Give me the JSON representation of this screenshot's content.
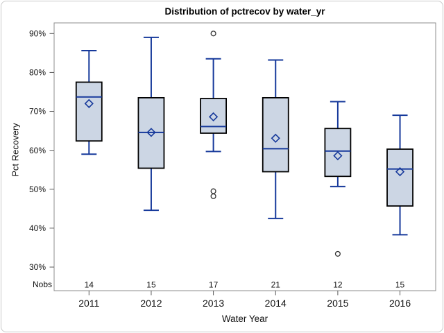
{
  "chart_data": {
    "type": "box",
    "title": "Distribution of pctrecov by water_yr",
    "xlabel": "Water Year",
    "ylabel": "Pct Recovery",
    "nobs_row_label": "Nobs",
    "y_axis": {
      "min": 30,
      "max": 90,
      "tick_step": 10,
      "tick_labels": [
        "30%",
        "40%",
        "50%",
        "60%",
        "70%",
        "80%",
        "90%"
      ],
      "grid": false
    },
    "categories": [
      "2011",
      "2012",
      "2013",
      "2014",
      "2015",
      "2016"
    ],
    "nobs": [
      14,
      15,
      17,
      21,
      12,
      15
    ],
    "legend": "none",
    "series": [
      {
        "category": "2011",
        "n": 14,
        "whisker_low": 59.0,
        "q1": 62.4,
        "median": 73.7,
        "q3": 77.5,
        "whisker_high": 85.6,
        "mean": 72.0,
        "outliers": []
      },
      {
        "category": "2012",
        "n": 15,
        "whisker_low": 44.6,
        "q1": 55.4,
        "median": 64.6,
        "q3": 73.5,
        "whisker_high": 89.0,
        "mean": 64.6,
        "outliers": []
      },
      {
        "category": "2013",
        "n": 17,
        "whisker_low": 59.7,
        "q1": 64.4,
        "median": 66.1,
        "q3": 73.3,
        "whisker_high": 83.5,
        "mean": 68.6,
        "outliers": [
          90.0,
          49.5,
          48.2
        ]
      },
      {
        "category": "2014",
        "n": 21,
        "whisker_low": 42.5,
        "q1": 54.5,
        "median": 60.4,
        "q3": 73.5,
        "whisker_high": 83.2,
        "mean": 63.1,
        "outliers": []
      },
      {
        "category": "2015",
        "n": 12,
        "whisker_low": 50.7,
        "q1": 53.3,
        "median": 59.8,
        "q3": 65.6,
        "whisker_high": 72.5,
        "mean": 58.6,
        "outliers": [
          33.4
        ]
      },
      {
        "category": "2016",
        "n": 15,
        "whisker_low": 38.3,
        "q1": 45.7,
        "median": 55.2,
        "q3": 60.3,
        "whisker_high": 69.0,
        "mean": 54.5,
        "outliers": []
      }
    ]
  },
  "style": {
    "colors": {
      "box_fill": "#ccd6e4",
      "box_border": "#000000",
      "accent_blue": "#16399b",
      "outlier_stroke": "#333333",
      "frame_gray": "#8c8c8c",
      "text": "#111111",
      "outer_border": "#c8c8c8",
      "background": "#ffffff"
    }
  }
}
